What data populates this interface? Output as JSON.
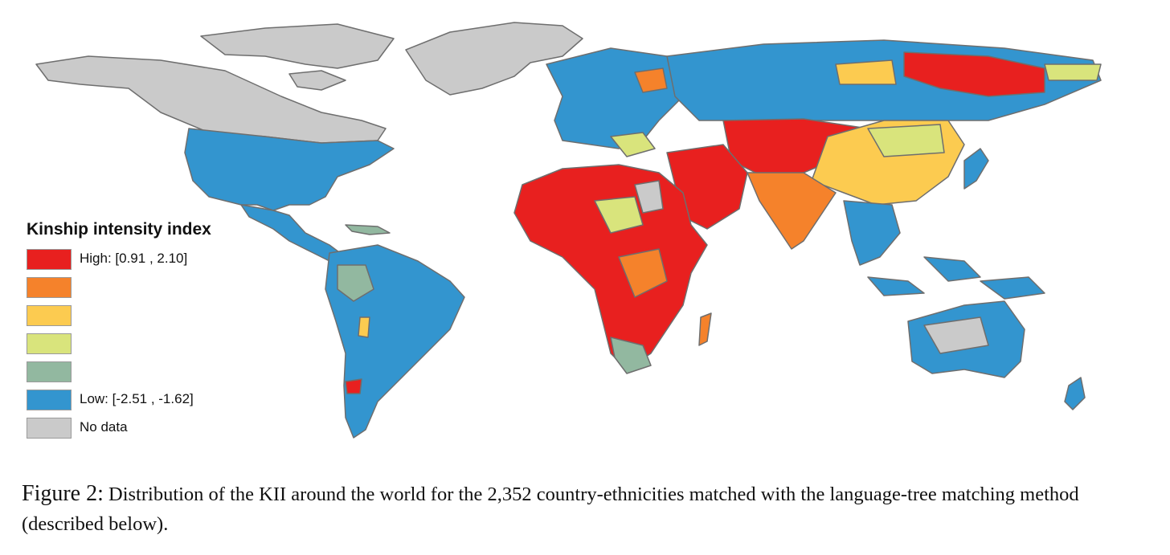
{
  "legend": {
    "title": "Kinship intensity index",
    "items": [
      {
        "color": "#e8201f",
        "label": "High: [0.91 , 2.10]"
      },
      {
        "color": "#f5822b",
        "label": ""
      },
      {
        "color": "#fccb50",
        "label": ""
      },
      {
        "color": "#d9e47c",
        "label": ""
      },
      {
        "color": "#92b8a0",
        "label": ""
      },
      {
        "color": "#3395cf",
        "label": "Low: [-2.51 , -1.62]"
      },
      {
        "color": "#cacaca",
        "label": "No data"
      }
    ]
  },
  "caption": {
    "label": "Figure 2:",
    "text": "Distribution of the KII around the world for the 2,352 country-ethnicities matched with the language-tree matching method (described below)."
  },
  "colors": {
    "high": "#e8201f",
    "orange": "#f5822b",
    "yellow": "#fccb50",
    "lightgreen": "#d9e47c",
    "greygreen": "#92b8a0",
    "low": "#3395cf",
    "nodata": "#cacaca",
    "border": "#6e6e6e"
  }
}
